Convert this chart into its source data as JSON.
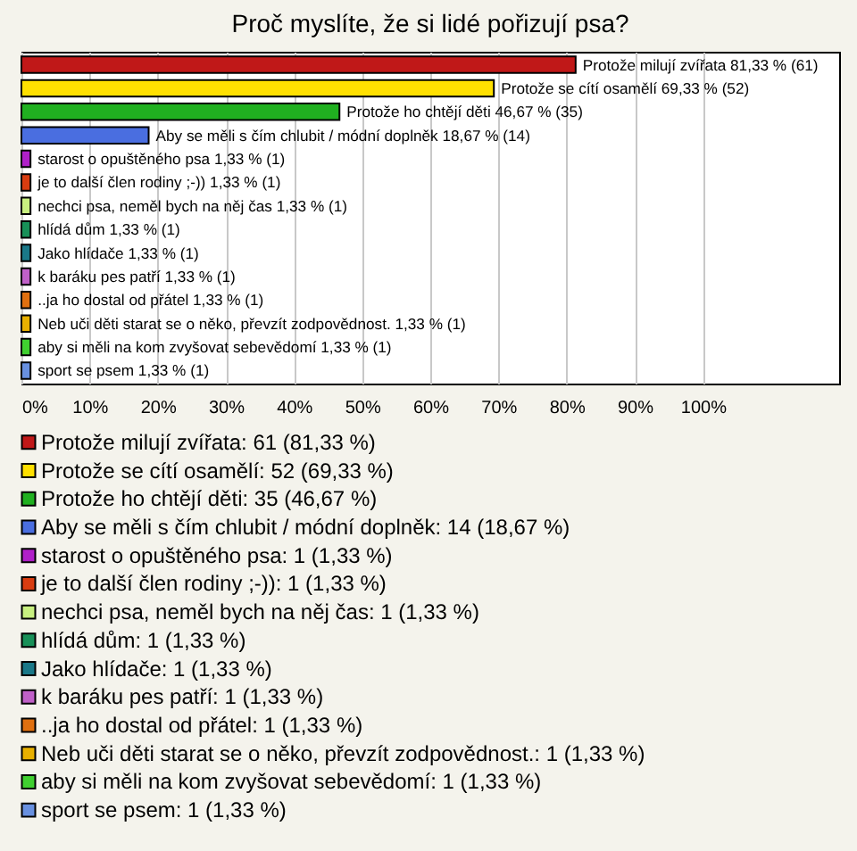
{
  "chart_data": [
    {
      "type": "bar",
      "title": "Proč myslíte, že si lidé pořizují psa?",
      "orientation": "horizontal",
      "categories": [
        "Protože milují zvířata",
        "Protože se cítí osamělí",
        "Protože ho chtějí děti",
        "Aby se měli s čím chlubit / módní doplněk",
        "starost o opuštěného psa",
        "je to další člen rodiny ;-))",
        "nechci psa, neměl bych na něj čas",
        "hlídá dům",
        "Jako hlídače",
        "k baráku pes patří",
        "..ja ho dostal od přátel",
        "Neb uči děti starat se o něko, převzít zodpovědnost.",
        "aby si měli na kom zvyšovat sebevědomí",
        "sport se psem"
      ],
      "values": [
        81.33,
        69.33,
        46.67,
        18.67,
        1.33,
        1.33,
        1.33,
        1.33,
        1.33,
        1.33,
        1.33,
        1.33,
        1.33,
        1.33
      ],
      "colors": [
        "#c01818",
        "#ffe000",
        "#20b020",
        "#4a6ee0",
        "#b020c8",
        "#d83c10",
        "#c8f080",
        "#189058",
        "#1a7888",
        "#c060c8",
        "#e07010",
        "#e8b000",
        "#40d030",
        "#6890e0"
      ],
      "value_labels": [
        "81,33 % (61)",
        "69,33 % (52)",
        "46,67 % (35)",
        "18,67 % (14)",
        "1,33 % (1)",
        "1,33 % (1)",
        "1,33 % (1)",
        "1,33 % (1)",
        "1,33 % (1)",
        "1,33 % (1)",
        "1,33 % (1)",
        "1,33 % (1)",
        "1,33 % (1)",
        "1,33 % (1)"
      ],
      "xlim": [
        0,
        120
      ],
      "xticks": [
        {
          "value": 0,
          "label": "0%"
        },
        {
          "value": 10,
          "label": "10%"
        },
        {
          "value": 20,
          "label": "20%"
        },
        {
          "value": 30,
          "label": "30%"
        },
        {
          "value": 40,
          "label": "40%"
        },
        {
          "value": 50,
          "label": "50%"
        },
        {
          "value": 60,
          "label": "60%"
        },
        {
          "value": 70,
          "label": "70%"
        },
        {
          "value": 80,
          "label": "80%"
        },
        {
          "value": 90,
          "label": "90%"
        },
        {
          "value": 100,
          "label": "100%"
        }
      ],
      "grid": "x",
      "tick_labels": "x"
    },
    {
      "type": "other",
      "annotations": [
        "Protože milují zvířata: 61 (81,33 %)",
        "Protože se cítí osamělí: 52 (69,33 %)",
        "Protože ho chtějí děti: 35 (46,67 %)",
        "Aby se měli s čím chlubit / módní doplněk: 14 (18,67 %)",
        "starost o opuštěného psa: 1 (1,33 %)",
        "je to další člen rodiny ;-)): 1 (1,33 %)",
        "nechci psa, neměl bych na něj čas: 1 (1,33 %)",
        "hlídá dům: 1 (1,33 %)",
        "Jako hlídače: 1 (1,33 %)",
        "k baráku pes patří: 1 (1,33 %)",
        "..ja ho dostal od přátel: 1 (1,33 %)",
        "Neb uči děti starat se o něko, převzít zodpovědnost.: 1 (1,33 %)",
        "aby si měli na kom zvyšovat sebevědomí: 1 (1,33 %)",
        "sport se psem: 1 (1,33 %)"
      ],
      "colors": [
        "#c01818",
        "#ffe000",
        "#20b020",
        "#4a6ee0",
        "#b020c8",
        "#d83c10",
        "#c8f080",
        "#189058",
        "#1a7888",
        "#c060c8",
        "#e07010",
        "#e8b000",
        "#40d030",
        "#6890e0"
      ]
    }
  ]
}
